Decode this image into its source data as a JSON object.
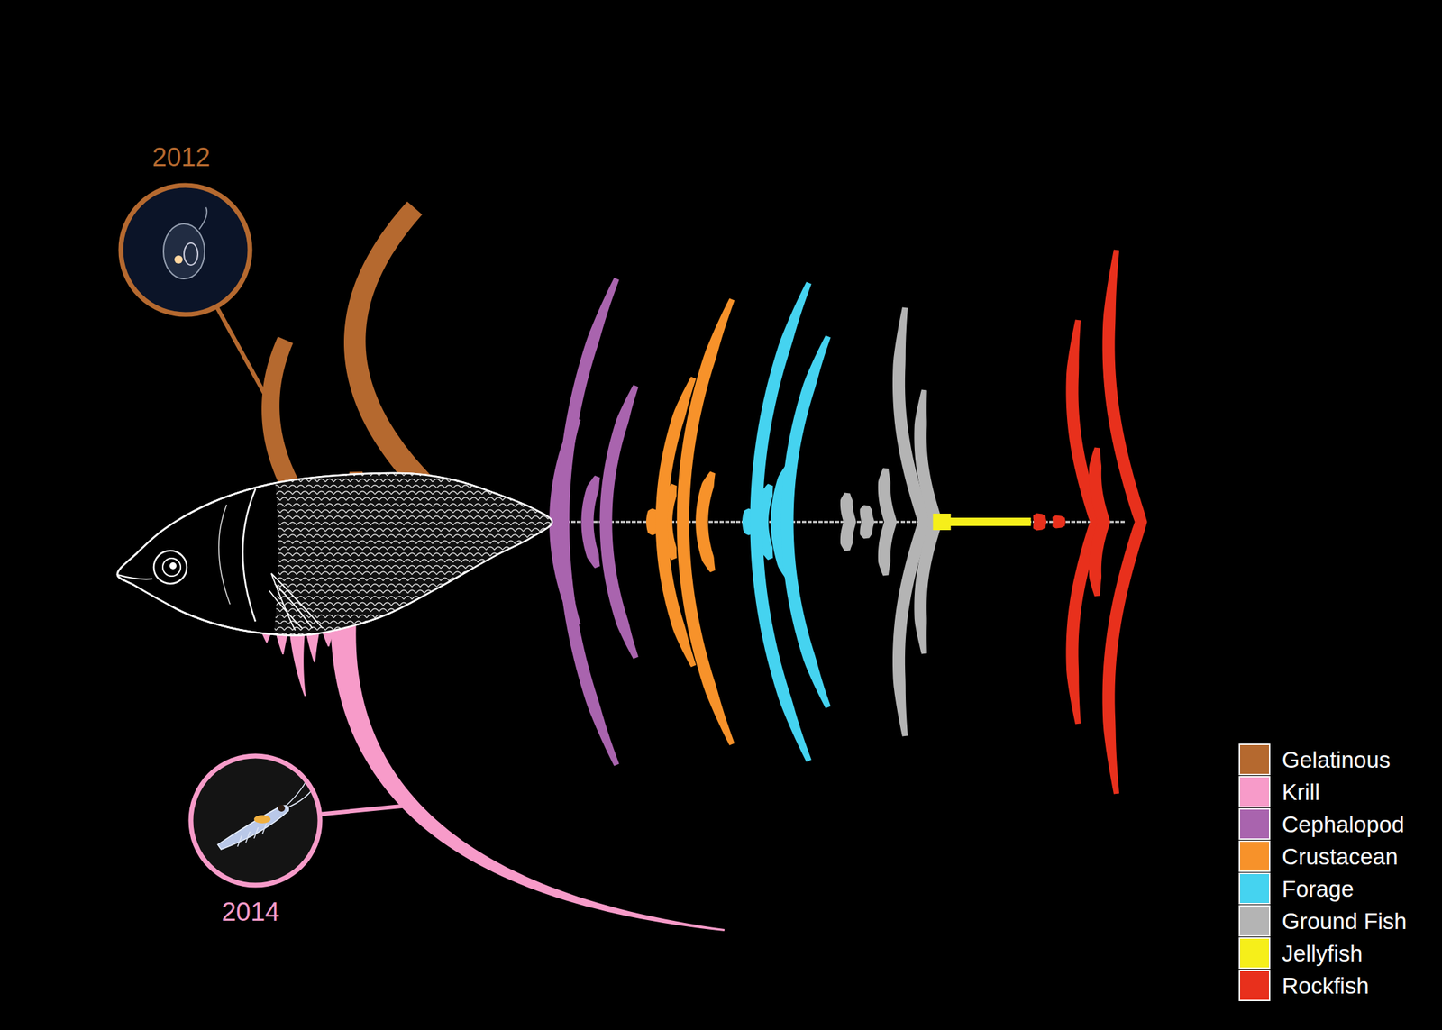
{
  "chart_data": {
    "type": "fishbone",
    "ylim": [
      0,
      125
    ],
    "tick_labels": false,
    "legend": "lower right",
    "annotations": [
      "2012",
      "2014"
    ],
    "series": [
      {
        "name": "Gelatinous",
        "color": "#b5692f",
        "type": "arc-up",
        "values": [
          35,
          3,
          67
        ]
      },
      {
        "name": "Krill",
        "color": "#f79bc9",
        "type": "arc-down",
        "values": [
          4,
          7,
          18,
          9,
          5,
          125
        ]
      },
      {
        "name": "Cephalopod",
        "color": "#a964ae",
        "type": "rib",
        "marker": "crescent",
        "values": [
          3,
          25,
          11,
          59,
          33
        ]
      },
      {
        "name": "Crustacean",
        "color": "#f7922a",
        "type": "rib",
        "marker": "crescent",
        "values": [
          3,
          9,
          35,
          12,
          54
        ]
      },
      {
        "name": "Forage",
        "color": "#45d3f0",
        "type": "rib",
        "marker": "crescent",
        "values": [
          3,
          9,
          14,
          58,
          45
        ]
      },
      {
        "name": "Ground Fish",
        "color": "#b4b4b4",
        "type": "rib",
        "marker": "chevron",
        "values": [
          7,
          4,
          13,
          52,
          32
        ]
      },
      {
        "name": "Jellyfish",
        "color": "#f6ef1a",
        "type": "rib",
        "marker": "square",
        "values": [
          2,
          1,
          1,
          1,
          1,
          1
        ]
      },
      {
        "name": "Rockfish",
        "color": "#e8301c",
        "type": "rib",
        "marker": "chevron",
        "values": [
          2,
          1.5,
          49,
          18,
          66
        ]
      }
    ]
  }
}
